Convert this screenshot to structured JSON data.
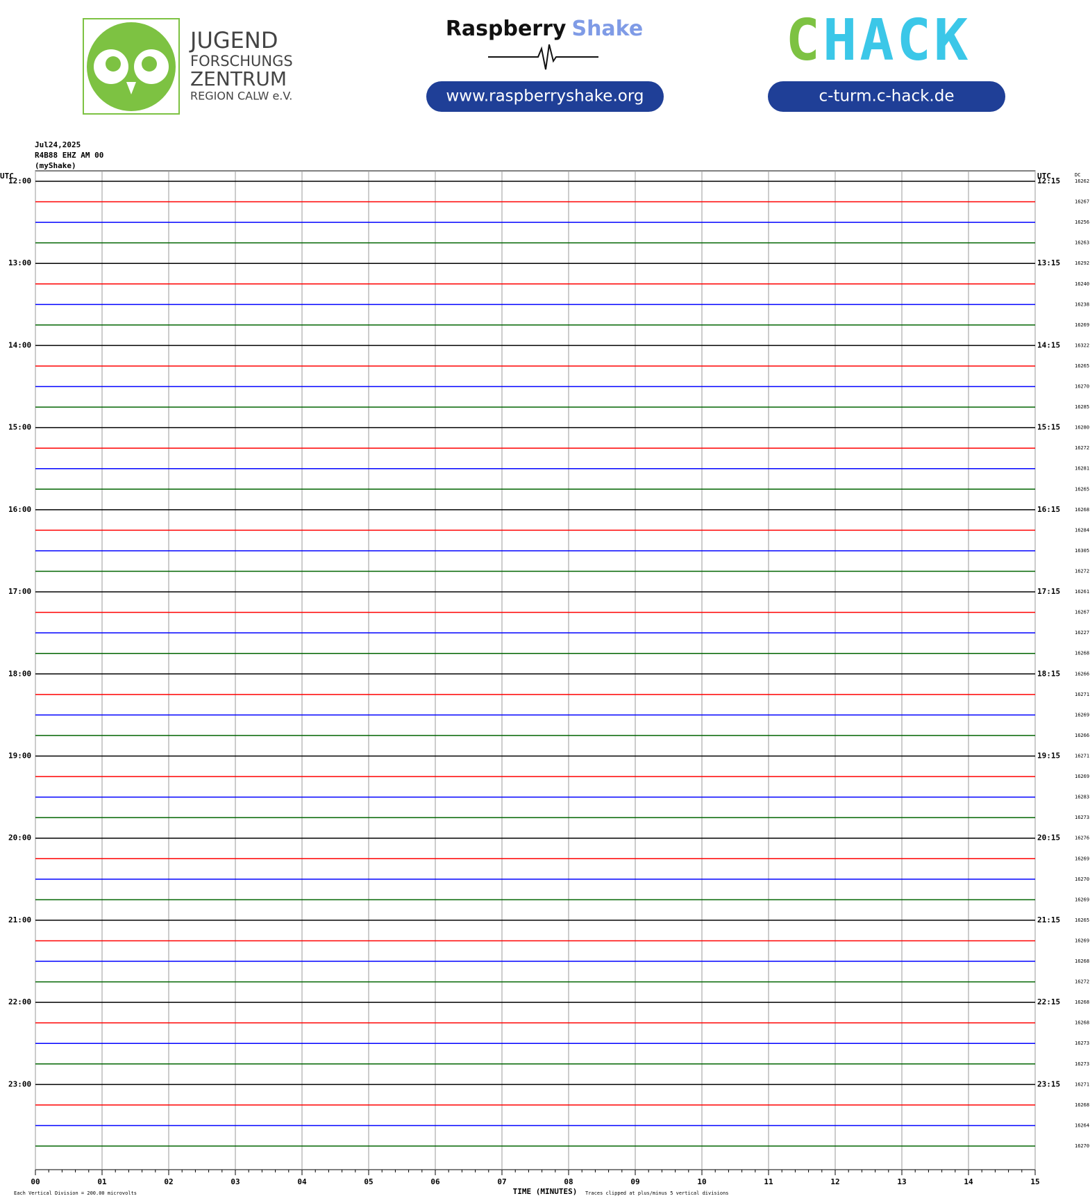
{
  "header": {
    "jfz_line1": "JUGEND",
    "jfz_line2": "FORSCHUNGS",
    "jfz_line3": "ZENTRUM",
    "jfz_line4": "REGION CALW e.V.",
    "rs_word1": "Raspberry",
    "rs_word2": "Shake",
    "rs_url": "www.raspberryshake.org",
    "chack_c": "C",
    "chack_rest": "HACK",
    "chack_url": "c-turm.c-hack.de"
  },
  "chart_data": {
    "type": "helicorder",
    "date": "Jul24,2025",
    "station": "R4B88 EHZ AM 00",
    "source": "(myShake)",
    "left_axis_label": "UTC",
    "right_axis_label": "UTC",
    "dc_label": "DC",
    "left_labels": [
      "12:00",
      "13:00",
      "14:00",
      "15:00",
      "16:00",
      "17:00",
      "18:00",
      "19:00",
      "20:00",
      "21:00",
      "22:00",
      "23:00"
    ],
    "right_labels": [
      "12:15",
      "13:15",
      "14:15",
      "15:15",
      "16:15",
      "17:15",
      "18:15",
      "19:15",
      "20:15",
      "21:15",
      "22:15",
      "23:15"
    ],
    "dc_values": [
      16262,
      16267,
      16256,
      16263,
      16292,
      16240,
      16238,
      16269,
      16322,
      16265,
      16270,
      16285,
      16280,
      16272,
      16281,
      16265,
      16268,
      16284,
      16305,
      16272,
      16261,
      16267,
      16227,
      16268,
      16266,
      16271,
      16269,
      16266,
      16271,
      16269,
      16283,
      16273,
      16276,
      16269,
      16270,
      16269,
      16265,
      16269,
      16268,
      16272,
      16268,
      16268,
      16273,
      16273,
      16271,
      16268,
      16264,
      16270
    ],
    "trace_colors": [
      "#000000",
      "#ff0000",
      "#0000ff",
      "#006400"
    ],
    "xlim": [
      0,
      15
    ],
    "xticks": [
      {
        "value": 0,
        "label": "00"
      },
      {
        "value": 1,
        "label": "01"
      },
      {
        "value": 2,
        "label": "02"
      },
      {
        "value": 3,
        "label": "03"
      },
      {
        "value": 4,
        "label": "04"
      },
      {
        "value": 5,
        "label": "05"
      },
      {
        "value": 6,
        "label": "06"
      },
      {
        "value": 7,
        "label": "07"
      },
      {
        "value": 8,
        "label": "08"
      },
      {
        "value": 9,
        "label": "09"
      },
      {
        "value": 10,
        "label": "10"
      },
      {
        "value": 11,
        "label": "11"
      },
      {
        "value": 12,
        "label": "12"
      },
      {
        "value": 13,
        "label": "13"
      },
      {
        "value": 14,
        "label": "14"
      },
      {
        "value": 15,
        "label": "15"
      }
    ],
    "xlabel": "TIME (MINUTES)",
    "scale_note": "Each Vertical Division =  200.00 microvolts",
    "clip_note": "Traces clipped at plus/minus 5 vertical divisions",
    "grid": true
  }
}
